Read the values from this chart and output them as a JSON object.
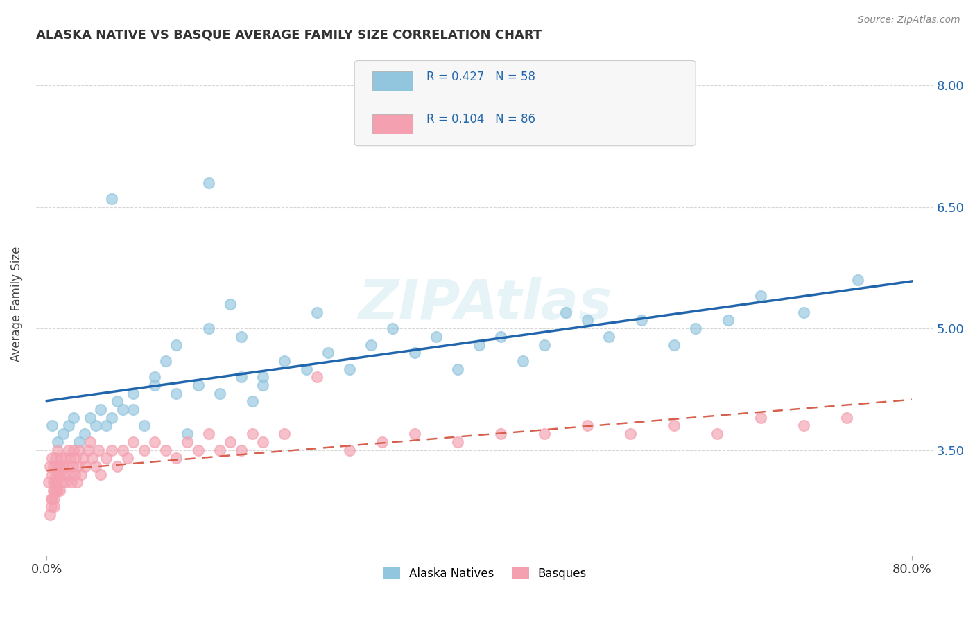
{
  "title": "ALASKA NATIVE VS BASQUE AVERAGE FAMILY SIZE CORRELATION CHART",
  "source": "Source: ZipAtlas.com",
  "ylabel": "Average Family Size",
  "legend_label_1": "Alaska Natives",
  "legend_label_2": "Basques",
  "r1": 0.427,
  "n1": 58,
  "r2": 0.104,
  "n2": 86,
  "color_blue": "#92c5de",
  "color_pink": "#f4a0b0",
  "color_line_blue": "#2166ac",
  "color_line_pink": "#d6604d",
  "xlim": [
    -0.01,
    0.82
  ],
  "ylim": [
    2.2,
    8.4
  ],
  "yticks": [
    3.5,
    5.0,
    6.5,
    8.0
  ],
  "xticks": [
    0.0,
    0.8
  ],
  "xticklabels": [
    "0.0%",
    "80.0%"
  ],
  "alaska_x": [
    0.005,
    0.01,
    0.015,
    0.02,
    0.025,
    0.03,
    0.035,
    0.04,
    0.045,
    0.05,
    0.055,
    0.06,
    0.065,
    0.07,
    0.08,
    0.09,
    0.1,
    0.11,
    0.12,
    0.13,
    0.14,
    0.15,
    0.16,
    0.17,
    0.18,
    0.19,
    0.2,
    0.22,
    0.24,
    0.26,
    0.28,
    0.3,
    0.32,
    0.34,
    0.36,
    0.38,
    0.4,
    0.42,
    0.44,
    0.46,
    0.48,
    0.5,
    0.52,
    0.55,
    0.58,
    0.6,
    0.63,
    0.66,
    0.7,
    0.75,
    0.06,
    0.08,
    0.1,
    0.12,
    0.15,
    0.18,
    0.2,
    0.25
  ],
  "alaska_y": [
    3.8,
    3.6,
    3.7,
    3.8,
    3.9,
    3.6,
    3.7,
    3.9,
    3.8,
    4.0,
    3.8,
    3.9,
    4.1,
    4.0,
    4.2,
    3.8,
    4.4,
    4.6,
    4.8,
    3.7,
    4.3,
    5.0,
    4.2,
    5.3,
    4.9,
    4.1,
    4.4,
    4.6,
    4.5,
    4.7,
    4.5,
    4.8,
    5.0,
    4.7,
    4.9,
    4.5,
    4.8,
    4.9,
    4.6,
    4.8,
    5.2,
    5.1,
    4.9,
    5.1,
    4.8,
    5.0,
    5.1,
    5.4,
    5.2,
    5.6,
    6.6,
    4.0,
    4.3,
    4.2,
    6.8,
    4.4,
    4.3,
    5.2
  ],
  "basque_x": [
    0.002,
    0.003,
    0.004,
    0.005,
    0.005,
    0.006,
    0.006,
    0.007,
    0.007,
    0.008,
    0.008,
    0.009,
    0.009,
    0.01,
    0.01,
    0.011,
    0.012,
    0.013,
    0.014,
    0.015,
    0.016,
    0.017,
    0.018,
    0.019,
    0.02,
    0.021,
    0.022,
    0.023,
    0.024,
    0.025,
    0.026,
    0.027,
    0.028,
    0.029,
    0.03,
    0.032,
    0.034,
    0.036,
    0.038,
    0.04,
    0.042,
    0.045,
    0.048,
    0.05,
    0.055,
    0.06,
    0.065,
    0.07,
    0.075,
    0.08,
    0.09,
    0.1,
    0.11,
    0.12,
    0.13,
    0.14,
    0.15,
    0.16,
    0.17,
    0.18,
    0.19,
    0.2,
    0.22,
    0.25,
    0.28,
    0.31,
    0.34,
    0.38,
    0.42,
    0.46,
    0.5,
    0.54,
    0.58,
    0.62,
    0.66,
    0.7,
    0.74,
    0.003,
    0.004,
    0.005,
    0.006,
    0.007,
    0.008,
    0.009,
    0.01,
    0.012
  ],
  "basque_y": [
    3.1,
    3.3,
    2.9,
    3.2,
    3.4,
    3.1,
    3.3,
    2.8,
    3.0,
    3.2,
    3.4,
    3.1,
    3.3,
    3.0,
    3.5,
    3.2,
    3.3,
    3.4,
    3.1,
    3.3,
    3.2,
    3.4,
    3.1,
    3.3,
    3.5,
    3.2,
    3.4,
    3.1,
    3.3,
    3.5,
    3.2,
    3.4,
    3.1,
    3.3,
    3.5,
    3.2,
    3.4,
    3.3,
    3.5,
    3.6,
    3.4,
    3.3,
    3.5,
    3.2,
    3.4,
    3.5,
    3.3,
    3.5,
    3.4,
    3.6,
    3.5,
    3.6,
    3.5,
    3.4,
    3.6,
    3.5,
    3.7,
    3.5,
    3.6,
    3.5,
    3.7,
    3.6,
    3.7,
    4.4,
    3.5,
    3.6,
    3.7,
    3.6,
    3.7,
    3.7,
    3.8,
    3.7,
    3.8,
    3.7,
    3.9,
    3.8,
    3.9,
    2.7,
    2.8,
    2.9,
    3.0,
    2.9,
    3.1,
    3.0,
    3.2,
    3.0
  ]
}
